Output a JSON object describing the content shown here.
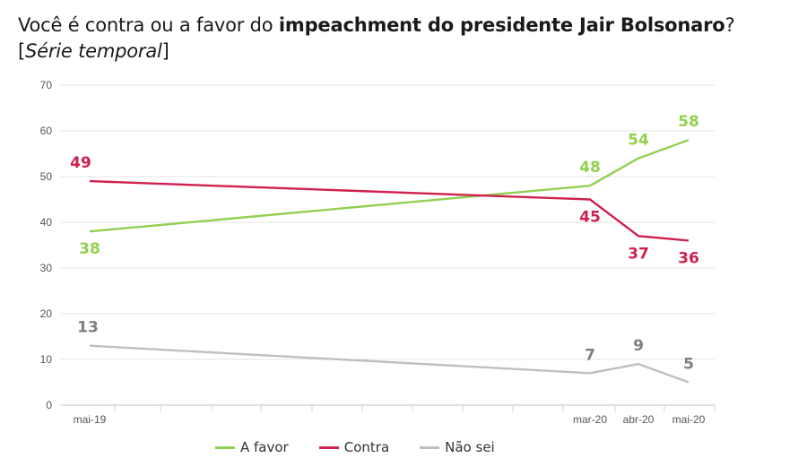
{
  "title": {
    "prefix": "Você é contra ou a favor do ",
    "bold": "impeachment do presidente Jair Bolsonaro",
    "suffix": "?",
    "sub_open": "[",
    "sub_italic": "Série temporal",
    "sub_close": "]"
  },
  "chart_data": {
    "type": "line",
    "title": "Você é contra ou a favor do impeachment do presidente Jair Bolsonaro? [Série temporal]",
    "x_tick_labels": [
      "mai-19",
      "mar-20",
      "abr-20",
      "mai-20"
    ],
    "ylim": [
      0,
      70
    ],
    "yticks": [
      0,
      10,
      20,
      30,
      40,
      50,
      60,
      70
    ],
    "grid": true,
    "legend_position": "bottom",
    "series": [
      {
        "name": "A favor",
        "color": "#92d050",
        "values": [
          38,
          48,
          54,
          58
        ]
      },
      {
        "name": "Contra",
        "color": "#d0204f",
        "values": [
          49,
          45,
          37,
          36
        ]
      },
      {
        "name": "Não sei",
        "color": "#bfbfbf",
        "values": [
          13,
          7,
          9,
          5
        ]
      }
    ]
  }
}
